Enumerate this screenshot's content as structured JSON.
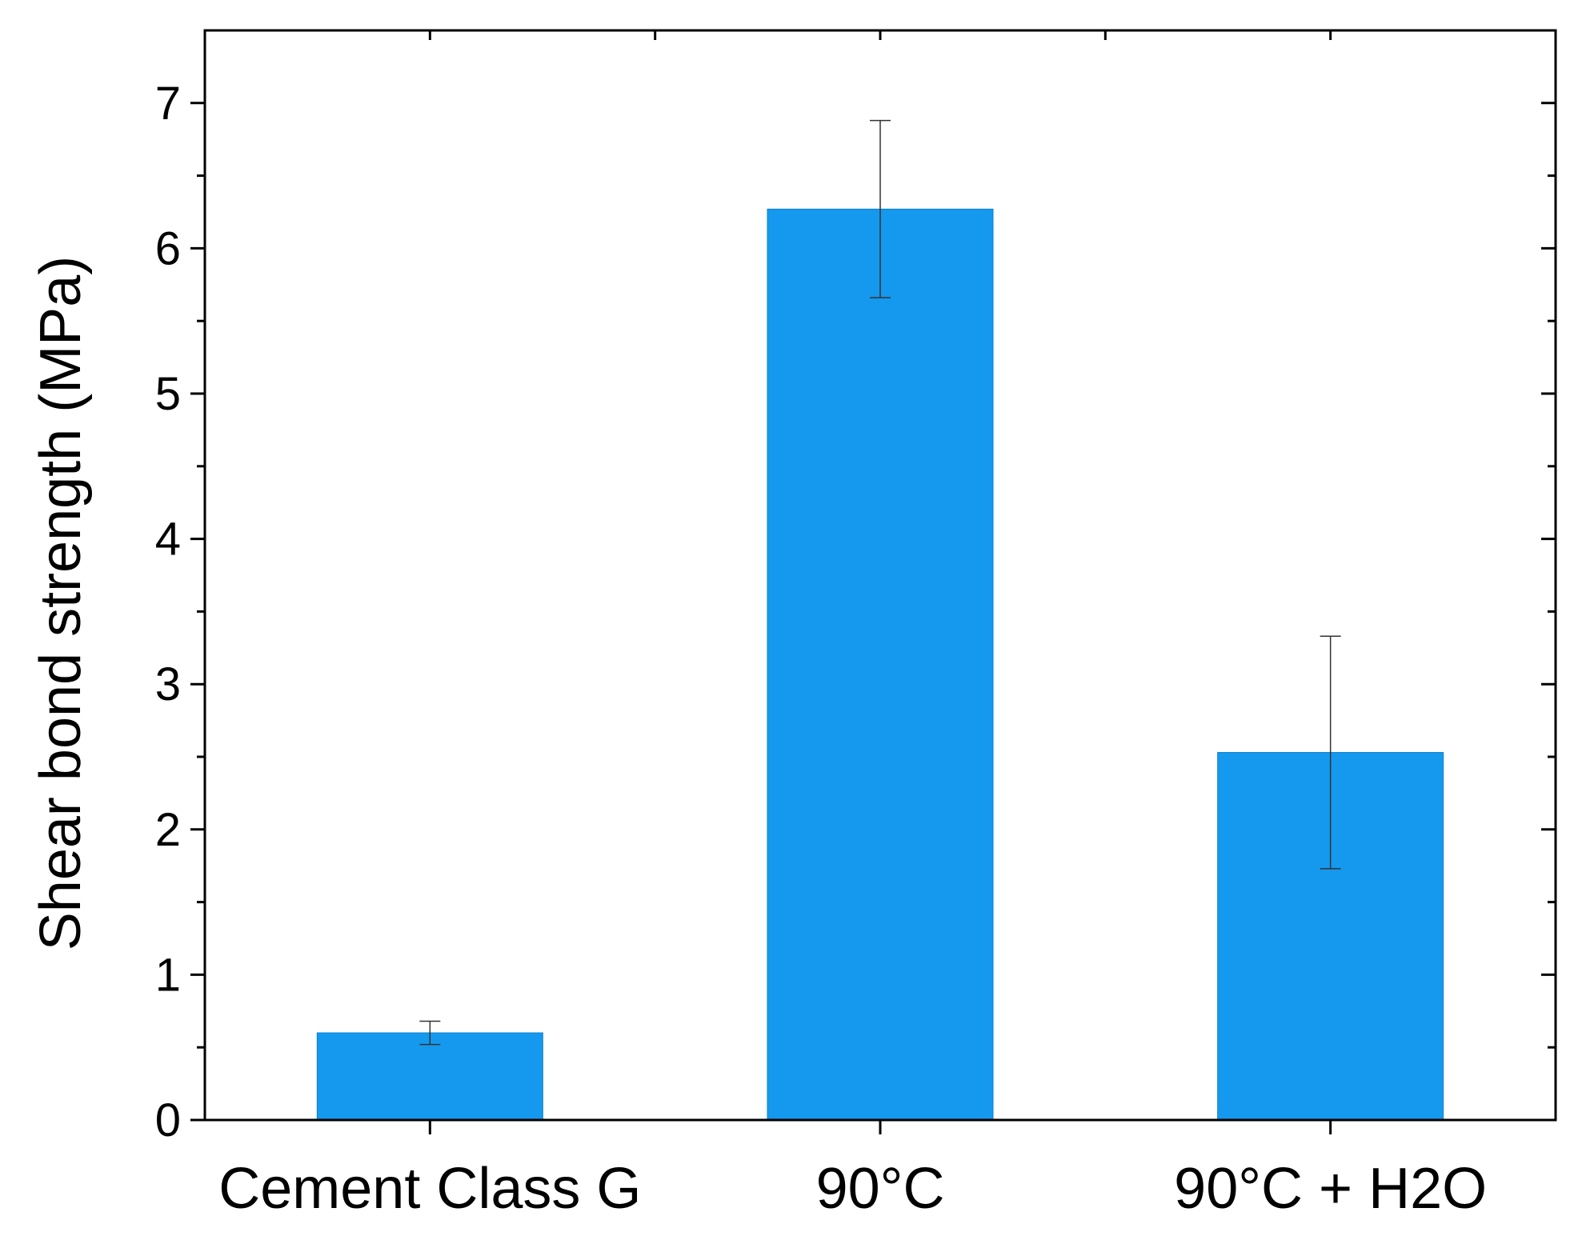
{
  "chart_data": {
    "type": "bar",
    "categories": [
      "Cement Class G",
      "90°C",
      "90°C + H2O"
    ],
    "values": [
      0.6,
      6.27,
      2.53
    ],
    "errors": [
      0.08,
      0.61,
      0.8
    ],
    "title": "",
    "xlabel": "",
    "ylabel": "Shear bond strength (MPa)",
    "ylim": [
      0,
      7.5
    ],
    "yticks": [
      "0",
      "1",
      "2",
      "3",
      "4",
      "5",
      "6",
      "7"
    ],
    "grid": false,
    "bar_color": "#1499ee",
    "errorbar_color": "#333333"
  }
}
